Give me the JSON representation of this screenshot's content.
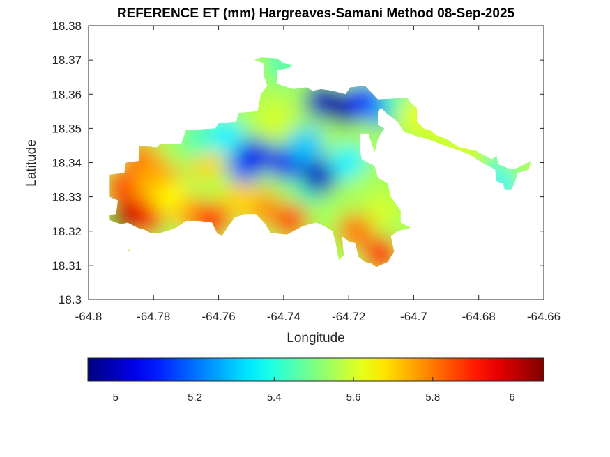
{
  "chart_data": {
    "type": "heatmap",
    "subtype": "filled-contour-map",
    "title": "REFERENCE ET (mm) Hargreaves-Samani Method  08-Sep-2025",
    "xlabel": "Longitude",
    "ylabel": "Latitude",
    "xlim": [
      -64.8,
      -64.66
    ],
    "ylim": [
      18.3,
      18.38
    ],
    "xticks": [
      -64.8,
      -64.78,
      -64.76,
      -64.74,
      -64.72,
      -64.7,
      -64.68,
      -64.66
    ],
    "xtick_labels": [
      "-64.8",
      "-64.78",
      "-64.76",
      "-64.74",
      "-64.72",
      "-64.7",
      "-64.68",
      "-64.66"
    ],
    "yticks": [
      18.3,
      18.31,
      18.32,
      18.33,
      18.34,
      18.35,
      18.36,
      18.37,
      18.38
    ],
    "ytick_labels": [
      "18.3",
      "18.31",
      "18.32",
      "18.33",
      "18.34",
      "18.35",
      "18.36",
      "18.37",
      "18.38"
    ],
    "grid": false,
    "colormap": "jet",
    "colorbar": {
      "location": "bottom",
      "range": [
        4.93,
        6.08
      ],
      "ticks": [
        5,
        5.2,
        5.4,
        5.6,
        5.8,
        6
      ],
      "tick_labels": [
        "5",
        "5.2",
        "5.4",
        "5.6",
        "5.8",
        "6"
      ]
    },
    "region_outline": [
      [
        -64.7935,
        18.3232
      ],
      [
        -64.7935,
        18.3248
      ],
      [
        -64.7915,
        18.325
      ],
      [
        -64.791,
        18.329
      ],
      [
        -64.7935,
        18.33
      ],
      [
        -64.7935,
        18.3365
      ],
      [
        -64.789,
        18.337
      ],
      [
        -64.7885,
        18.34
      ],
      [
        -64.7845,
        18.3405
      ],
      [
        -64.7845,
        18.345
      ],
      [
        -64.779,
        18.3445
      ],
      [
        -64.778,
        18.3455
      ],
      [
        -64.7715,
        18.3455
      ],
      [
        -64.77,
        18.3495
      ],
      [
        -64.761,
        18.35
      ],
      [
        -64.76,
        18.3515
      ],
      [
        -64.7545,
        18.352
      ],
      [
        -64.754,
        18.3545
      ],
      [
        -64.748,
        18.355
      ],
      [
        -64.747,
        18.36
      ],
      [
        -64.745,
        18.3625
      ],
      [
        -64.746,
        18.365
      ],
      [
        -64.746,
        18.369
      ],
      [
        -64.749,
        18.37
      ],
      [
        -64.747,
        18.3708
      ],
      [
        -64.742,
        18.3705
      ],
      [
        -64.74,
        18.369
      ],
      [
        -64.737,
        18.3685
      ],
      [
        -64.739,
        18.3675
      ],
      [
        -64.742,
        18.367
      ],
      [
        -64.742,
        18.363
      ],
      [
        -64.737,
        18.3615
      ],
      [
        -64.733,
        18.362
      ],
      [
        -64.731,
        18.361
      ],
      [
        -64.7285,
        18.3615
      ],
      [
        -64.725,
        18.361
      ],
      [
        -64.721,
        18.36
      ],
      [
        -64.7195,
        18.362
      ],
      [
        -64.715,
        18.3625
      ],
      [
        -64.7125,
        18.36
      ],
      [
        -64.711,
        18.3585
      ],
      [
        -64.702,
        18.359
      ],
      [
        -64.701,
        18.3575
      ],
      [
        -64.699,
        18.356
      ],
      [
        -64.699,
        18.352
      ],
      [
        -64.697,
        18.35
      ],
      [
        -64.695,
        18.3495
      ],
      [
        -64.693,
        18.348
      ],
      [
        -64.69,
        18.347
      ],
      [
        -64.686,
        18.3445
      ],
      [
        -64.681,
        18.3435
      ],
      [
        -64.676,
        18.341
      ],
      [
        -64.6745,
        18.342
      ],
      [
        -64.674,
        18.3395
      ],
      [
        -64.67,
        18.338
      ],
      [
        -64.668,
        18.3385
      ],
      [
        -64.666,
        18.3395
      ],
      [
        -64.664,
        18.3405
      ],
      [
        -64.6645,
        18.338
      ],
      [
        -64.668,
        18.337
      ],
      [
        -64.669,
        18.334
      ],
      [
        -64.67,
        18.332
      ],
      [
        -64.672,
        18.332
      ],
      [
        -64.6725,
        18.334
      ],
      [
        -64.6745,
        18.3345
      ],
      [
        -64.675,
        18.338
      ],
      [
        -64.679,
        18.34
      ],
      [
        -64.683,
        18.3425
      ],
      [
        -64.689,
        18.3445
      ],
      [
        -64.696,
        18.347
      ],
      [
        -64.7,
        18.348
      ],
      [
        -64.703,
        18.349
      ],
      [
        -64.705,
        18.352
      ],
      [
        -64.7085,
        18.3545
      ],
      [
        -64.71,
        18.356
      ],
      [
        -64.711,
        18.355
      ],
      [
        -64.711,
        18.351
      ],
      [
        -64.709,
        18.35
      ],
      [
        -64.711,
        18.347
      ],
      [
        -64.712,
        18.343
      ],
      [
        -64.714,
        18.3485
      ],
      [
        -64.7165,
        18.3485
      ],
      [
        -64.7165,
        18.344
      ],
      [
        -64.716,
        18.341
      ],
      [
        -64.712,
        18.339
      ],
      [
        -64.711,
        18.3355
      ],
      [
        -64.708,
        18.334
      ],
      [
        -64.707,
        18.33
      ],
      [
        -64.704,
        18.326
      ],
      [
        -64.704,
        18.3225
      ],
      [
        -64.701,
        18.321
      ],
      [
        -64.705,
        18.32
      ],
      [
        -64.707,
        18.3185
      ],
      [
        -64.706,
        18.314
      ],
      [
        -64.708,
        18.311
      ],
      [
        -64.7115,
        18.3095
      ],
      [
        -64.713,
        18.3105
      ],
      [
        -64.715,
        18.311
      ],
      [
        -64.717,
        18.3125
      ],
      [
        -64.718,
        18.3165
      ],
      [
        -64.72,
        18.317
      ],
      [
        -64.722,
        18.3185
      ],
      [
        -64.7215,
        18.313
      ],
      [
        -64.723,
        18.3115
      ],
      [
        -64.724,
        18.3165
      ],
      [
        -64.725,
        18.32
      ],
      [
        -64.7275,
        18.3215
      ],
      [
        -64.73,
        18.3225
      ],
      [
        -64.734,
        18.3215
      ],
      [
        -64.736,
        18.3205
      ],
      [
        -64.739,
        18.319
      ],
      [
        -64.744,
        18.3195
      ],
      [
        -64.746,
        18.3225
      ],
      [
        -64.7485,
        18.325
      ],
      [
        -64.752,
        18.325
      ],
      [
        -64.755,
        18.324
      ],
      [
        -64.757,
        18.3215
      ],
      [
        -64.759,
        18.3185
      ],
      [
        -64.7605,
        18.3195
      ],
      [
        -64.762,
        18.3225
      ],
      [
        -64.766,
        18.323
      ],
      [
        -64.77,
        18.323
      ],
      [
        -64.773,
        18.321
      ],
      [
        -64.776,
        18.32
      ],
      [
        -64.778,
        18.3195
      ],
      [
        -64.781,
        18.3195
      ],
      [
        -64.783,
        18.3205
      ],
      [
        -64.785,
        18.321
      ],
      [
        -64.788,
        18.3225
      ],
      [
        -64.79,
        18.322
      ]
    ],
    "value_field_estimates": [
      {
        "lon": -64.788,
        "lat": 18.324,
        "value": 6.08
      },
      {
        "lon": -64.785,
        "lat": 18.328,
        "value": 6.0
      },
      {
        "lon": -64.782,
        "lat": 18.324,
        "value": 5.95
      },
      {
        "lon": -64.79,
        "lat": 18.333,
        "value": 5.85
      },
      {
        "lon": -64.784,
        "lat": 18.341,
        "value": 5.8
      },
      {
        "lon": -64.78,
        "lat": 18.333,
        "value": 5.72
      },
      {
        "lon": -64.777,
        "lat": 18.338,
        "value": 5.75
      },
      {
        "lon": -64.774,
        "lat": 18.329,
        "value": 5.65
      },
      {
        "lon": -64.768,
        "lat": 18.325,
        "value": 5.75
      },
      {
        "lon": -64.762,
        "lat": 18.323,
        "value": 5.9
      },
      {
        "lon": -64.764,
        "lat": 18.34,
        "value": 5.7
      },
      {
        "lon": -64.772,
        "lat": 18.344,
        "value": 5.55
      },
      {
        "lon": -64.766,
        "lat": 18.347,
        "value": 5.45
      },
      {
        "lon": -64.758,
        "lat": 18.348,
        "value": 5.35
      },
      {
        "lon": -64.758,
        "lat": 18.333,
        "value": 5.58
      },
      {
        "lon": -64.752,
        "lat": 18.339,
        "value": 5.2
      },
      {
        "lon": -64.749,
        "lat": 18.342,
        "value": 5.05
      },
      {
        "lon": -64.743,
        "lat": 18.353,
        "value": 5.6
      },
      {
        "lon": -64.744,
        "lat": 18.364,
        "value": 5.55
      },
      {
        "lon": -64.74,
        "lat": 18.369,
        "value": 5.45
      },
      {
        "lon": -64.739,
        "lat": 18.34,
        "value": 5.05
      },
      {
        "lon": -64.733,
        "lat": 18.345,
        "value": 5.3
      },
      {
        "lon": -64.732,
        "lat": 18.333,
        "value": 5.45
      },
      {
        "lon": -64.729,
        "lat": 18.336,
        "value": 5.0
      },
      {
        "lon": -64.728,
        "lat": 18.358,
        "value": 5.0
      },
      {
        "lon": -64.721,
        "lat": 18.356,
        "value": 4.95
      },
      {
        "lon": -64.715,
        "lat": 18.358,
        "value": 5.1
      },
      {
        "lon": -64.71,
        "lat": 18.356,
        "value": 5.2
      },
      {
        "lon": -64.72,
        "lat": 18.34,
        "value": 5.35
      },
      {
        "lon": -64.715,
        "lat": 18.332,
        "value": 5.55
      },
      {
        "lon": -64.71,
        "lat": 18.326,
        "value": 5.6
      },
      {
        "lon": -64.718,
        "lat": 18.32,
        "value": 5.8
      },
      {
        "lon": -64.71,
        "lat": 18.313,
        "value": 5.92
      },
      {
        "lon": -64.738,
        "lat": 18.323,
        "value": 5.85
      },
      {
        "lon": -64.747,
        "lat": 18.327,
        "value": 5.78
      },
      {
        "lon": -64.753,
        "lat": 18.329,
        "value": 5.7
      },
      {
        "lon": -64.704,
        "lat": 18.357,
        "value": 5.45
      },
      {
        "lon": -64.699,
        "lat": 18.354,
        "value": 5.62
      },
      {
        "lon": -64.693,
        "lat": 18.349,
        "value": 5.6
      },
      {
        "lon": -64.684,
        "lat": 18.3435,
        "value": 5.6
      },
      {
        "lon": -64.672,
        "lat": 18.339,
        "value": 5.45
      },
      {
        "lon": -64.672,
        "lat": 18.335,
        "value": 5.35
      },
      {
        "lon": -64.667,
        "lat": 18.3395,
        "value": 5.55
      }
    ]
  }
}
